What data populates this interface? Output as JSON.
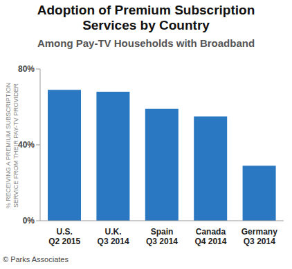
{
  "chart_data": {
    "type": "bar",
    "title": "Adoption of Premium Subscription Services by Country",
    "subtitle": "Among Pay-TV Households with Broadband",
    "y_label": "% RECEIVING A PREMIUM SUBSCRIPTION SERVICE FROM THEIR PAY-TV PROVIDER",
    "source": "© Parks Associates",
    "categories": [
      "U.S.\nQ2 2015",
      "U.K.\nQ3 2014",
      "Spain\nQ3 2014",
      "Canada\nQ4 2014",
      "Germany\nQ3 2014"
    ],
    "values": [
      69,
      68,
      59,
      55,
      29
    ],
    "color": "#2a78c2",
    "ylim": [
      0,
      80
    ],
    "yticks": [
      {
        "value": 0,
        "label": "0%"
      },
      {
        "value": 40,
        "label": "40%"
      },
      {
        "value": 80,
        "label": "80%"
      }
    ],
    "grid": false
  }
}
